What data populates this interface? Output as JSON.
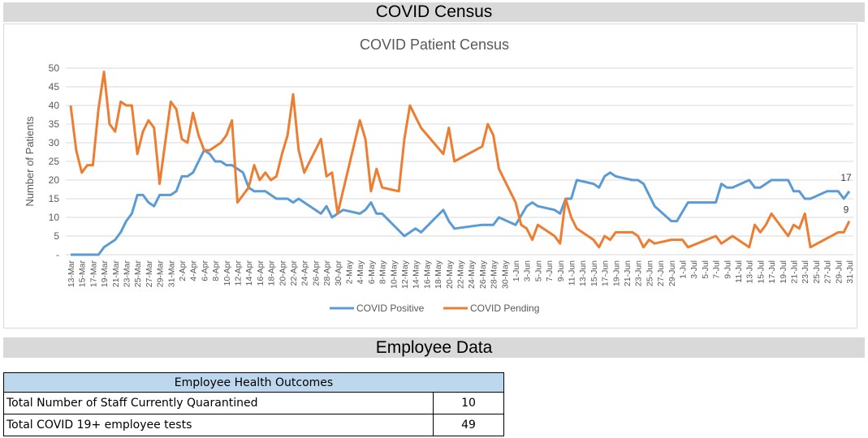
{
  "sections": {
    "census_title": "COVID Census",
    "employee_title": "Employee Data"
  },
  "chart_data": {
    "type": "line",
    "title": "COVID Patient Census",
    "xlabel": "",
    "ylabel": "Number of Patients",
    "ylim": [
      0,
      50
    ],
    "yticks": [
      "-",
      "5",
      "10",
      "15",
      "20",
      "25",
      "30",
      "35",
      "40",
      "45",
      "50"
    ],
    "grid": true,
    "legend_position": "bottom",
    "x_unit": "days since 13-Mar",
    "xticks": [
      "13-Mar",
      "15-Mar",
      "17-Mar",
      "19-Mar",
      "21-Mar",
      "23-Mar",
      "25-Mar",
      "27-Mar",
      "29-Mar",
      "31-Mar",
      "2-Apr",
      "4-Apr",
      "6-Apr",
      "8-Apr",
      "10-Apr",
      "12-Apr",
      "14-Apr",
      "16-Apr",
      "18-Apr",
      "20-Apr",
      "22-Apr",
      "24-Apr",
      "26-Apr",
      "28-Apr",
      "30-Apr",
      "2-May",
      "4-May",
      "6-May",
      "8-May",
      "10-May",
      "12-May",
      "14-May",
      "16-May",
      "18-May",
      "20-May",
      "22-May",
      "24-May",
      "26-May",
      "28-May",
      "30-May",
      "1-Jun",
      "3-Jun",
      "5-Jun",
      "7-Jun",
      "9-Jun",
      "11-Jun",
      "13-Jun",
      "15-Jun",
      "17-Jun",
      "19-Jun",
      "21-Jun",
      "23-Jun",
      "25-Jun",
      "27-Jun",
      "29-Jun",
      "1-Jul",
      "3-Jul",
      "5-Jul",
      "7-Jul",
      "9-Jul",
      "11-Jul",
      "13-Jul",
      "15-Jul",
      "17-Jul",
      "19-Jul",
      "21-Jul",
      "23-Jul",
      "25-Jul",
      "27-Jul",
      "29-Jul",
      "31-Jul"
    ],
    "series": [
      {
        "name": "COVID Positive",
        "color": "#5b9bd5",
        "end_label": "17",
        "points": [
          [
            0,
            0
          ],
          [
            5,
            0
          ],
          [
            6,
            2
          ],
          [
            8,
            4
          ],
          [
            9,
            6
          ],
          [
            10,
            9
          ],
          [
            11,
            11
          ],
          [
            12,
            16
          ],
          [
            13,
            16
          ],
          [
            14,
            14
          ],
          [
            15,
            13
          ],
          [
            16,
            16
          ],
          [
            18,
            16
          ],
          [
            19,
            17
          ],
          [
            20,
            21
          ],
          [
            21,
            21
          ],
          [
            22,
            22
          ],
          [
            23,
            25
          ],
          [
            24,
            28
          ],
          [
            25,
            27
          ],
          [
            26,
            25
          ],
          [
            27,
            25
          ],
          [
            28,
            24
          ],
          [
            29,
            24
          ],
          [
            30,
            23
          ],
          [
            31,
            22
          ],
          [
            32,
            18
          ],
          [
            33,
            17
          ],
          [
            35,
            17
          ],
          [
            37,
            15
          ],
          [
            39,
            15
          ],
          [
            40,
            14
          ],
          [
            41,
            15
          ],
          [
            43,
            13
          ],
          [
            45,
            11
          ],
          [
            46,
            13
          ],
          [
            47,
            10
          ],
          [
            48,
            11
          ],
          [
            49,
            12
          ],
          [
            52,
            11
          ],
          [
            53,
            12
          ],
          [
            54,
            14
          ],
          [
            55,
            11
          ],
          [
            56,
            11
          ],
          [
            60,
            5
          ],
          [
            62,
            7
          ],
          [
            63,
            6
          ],
          [
            67,
            12
          ],
          [
            68,
            9
          ],
          [
            69,
            7
          ],
          [
            74,
            8
          ],
          [
            76,
            8
          ],
          [
            77,
            10
          ],
          [
            80,
            8
          ],
          [
            82,
            13
          ],
          [
            83,
            14
          ],
          [
            84,
            13
          ],
          [
            87,
            12
          ],
          [
            88,
            11
          ],
          [
            89,
            15
          ],
          [
            90,
            15
          ],
          [
            91,
            20
          ],
          [
            94,
            19
          ],
          [
            95,
            18
          ],
          [
            96,
            21
          ],
          [
            97,
            22
          ],
          [
            98,
            21
          ],
          [
            101,
            20
          ],
          [
            102,
            20
          ],
          [
            103,
            19
          ],
          [
            105,
            13
          ],
          [
            108,
            9
          ],
          [
            109,
            9
          ],
          [
            111,
            14
          ],
          [
            116,
            14
          ],
          [
            117,
            19
          ],
          [
            118,
            18
          ],
          [
            119,
            18
          ],
          [
            122,
            20
          ],
          [
            123,
            18
          ],
          [
            124,
            18
          ],
          [
            126,
            20
          ],
          [
            129,
            20
          ],
          [
            130,
            17
          ],
          [
            131,
            17
          ],
          [
            132,
            15
          ],
          [
            133,
            15
          ],
          [
            136,
            17
          ],
          [
            138,
            17
          ],
          [
            139,
            15
          ],
          [
            140,
            17
          ]
        ]
      },
      {
        "name": "COVID Pending",
        "color": "#ed7d31",
        "end_label": "9",
        "points": [
          [
            0,
            40
          ],
          [
            1,
            28
          ],
          [
            2,
            22
          ],
          [
            3,
            24
          ],
          [
            4,
            24
          ],
          [
            5,
            39
          ],
          [
            6,
            49
          ],
          [
            7,
            35
          ],
          [
            8,
            33
          ],
          [
            9,
            41
          ],
          [
            10,
            40
          ],
          [
            11,
            40
          ],
          [
            12,
            27
          ],
          [
            13,
            33
          ],
          [
            14,
            36
          ],
          [
            15,
            34
          ],
          [
            16,
            19
          ],
          [
            17,
            30
          ],
          [
            18,
            41
          ],
          [
            19,
            39
          ],
          [
            20,
            31
          ],
          [
            21,
            30
          ],
          [
            22,
            38
          ],
          [
            23,
            32
          ],
          [
            24,
            28
          ],
          [
            25,
            28
          ],
          [
            26,
            29
          ],
          [
            27,
            30
          ],
          [
            28,
            32
          ],
          [
            29,
            36
          ],
          [
            30,
            14
          ],
          [
            31,
            16
          ],
          [
            32,
            18
          ],
          [
            33,
            24
          ],
          [
            34,
            20
          ],
          [
            35,
            22
          ],
          [
            36,
            20
          ],
          [
            37,
            21
          ],
          [
            38,
            27
          ],
          [
            39,
            32
          ],
          [
            40,
            43
          ],
          [
            41,
            28
          ],
          [
            42,
            22
          ],
          [
            45,
            31
          ],
          [
            46,
            21
          ],
          [
            47,
            22
          ],
          [
            48,
            11
          ],
          [
            52,
            36
          ],
          [
            53,
            31
          ],
          [
            54,
            17
          ],
          [
            55,
            23
          ],
          [
            56,
            18
          ],
          [
            59,
            17
          ],
          [
            60,
            31
          ],
          [
            61,
            40
          ],
          [
            63,
            34
          ],
          [
            67,
            27
          ],
          [
            68,
            34
          ],
          [
            69,
            25
          ],
          [
            74,
            29
          ],
          [
            75,
            35
          ],
          [
            76,
            32
          ],
          [
            77,
            23
          ],
          [
            80,
            14
          ],
          [
            81,
            8
          ],
          [
            82,
            7
          ],
          [
            83,
            4
          ],
          [
            84,
            8
          ],
          [
            87,
            5
          ],
          [
            88,
            3
          ],
          [
            89,
            15
          ],
          [
            90,
            10
          ],
          [
            91,
            7
          ],
          [
            94,
            4
          ],
          [
            95,
            2
          ],
          [
            96,
            5
          ],
          [
            97,
            4
          ],
          [
            98,
            6
          ],
          [
            101,
            6
          ],
          [
            102,
            5
          ],
          [
            103,
            2
          ],
          [
            104,
            4
          ],
          [
            105,
            3
          ],
          [
            108,
            4
          ],
          [
            110,
            4
          ],
          [
            111,
            2
          ],
          [
            116,
            5
          ],
          [
            117,
            3
          ],
          [
            119,
            5
          ],
          [
            122,
            2
          ],
          [
            123,
            8
          ],
          [
            124,
            6
          ],
          [
            125,
            8
          ],
          [
            126,
            11
          ],
          [
            129,
            5
          ],
          [
            130,
            8
          ],
          [
            131,
            7
          ],
          [
            132,
            11
          ],
          [
            133,
            2
          ],
          [
            138,
            6
          ],
          [
            139,
            6
          ],
          [
            140,
            9
          ]
        ]
      }
    ]
  },
  "employee_table": {
    "header": "Employee Health Outcomes",
    "rows": [
      {
        "label": "Total Number of Staff Currently Quarantined",
        "value": "10"
      },
      {
        "label": "Total COVID 19+ employee tests",
        "value": "49"
      }
    ]
  }
}
